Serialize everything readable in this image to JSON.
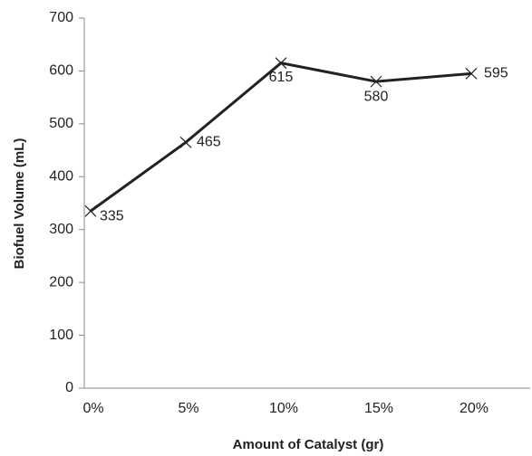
{
  "chart_data": {
    "type": "line",
    "x_label": "Amount of Catalyst (gr)",
    "y_label": "Biofuel Volume (mL)",
    "categories": [
      "0%",
      "5%",
      "10%",
      "15%",
      "20%"
    ],
    "values": [
      335,
      465,
      615,
      580,
      595
    ],
    "color": "#222222",
    "ylim": [
      0,
      700
    ],
    "yticks": [
      0,
      100,
      200,
      300,
      400,
      500,
      600,
      700
    ],
    "grid": false
  }
}
